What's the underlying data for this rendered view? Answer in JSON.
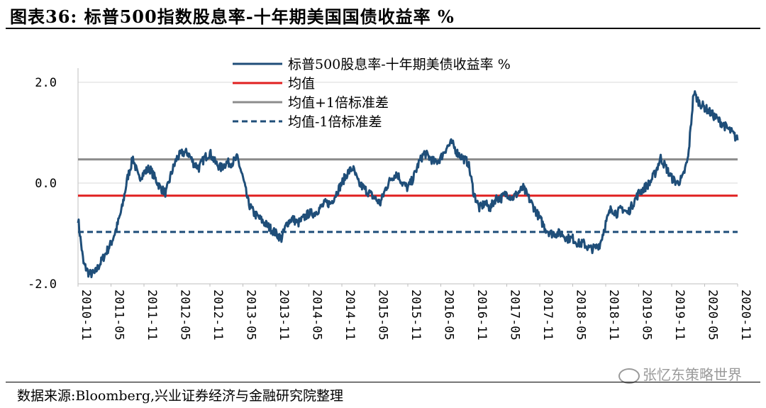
{
  "header": {
    "title": "图表36:  标普500指数股息率-十年期美国国债收益率  %"
  },
  "footer": {
    "source": "数据来源:Bloomberg,兴业证券经济与金融研究院整理",
    "watermark": "张忆东策略世界"
  },
  "colors": {
    "series": "#1f4e79",
    "mean": "#e02020",
    "plus_sd": "#8c8c8c",
    "minus_sd": "#1f4e79"
  },
  "chart_data": {
    "type": "line",
    "ylim": [
      -2.0,
      2.0
    ],
    "yticks": [
      2.0,
      0.0,
      -2.0
    ],
    "ytick_labels": [
      "2.0",
      "0.0",
      "-2.0"
    ],
    "xlim": [
      "2010-11",
      "2020-11"
    ],
    "xtick_labels": [
      "2010-11",
      "2011-05",
      "2011-11",
      "2012-05",
      "2012-11",
      "2013-05",
      "2013-11",
      "2014-05",
      "2014-11",
      "2015-05",
      "2015-11",
      "2016-05",
      "2016-11",
      "2017-05",
      "2017-11",
      "2018-05",
      "2018-11",
      "2019-05",
      "2019-11",
      "2020-05",
      "2020-11"
    ],
    "legend_position": "top-center",
    "series": [
      {
        "name": "标普500股息率-十年期美债收益率  %",
        "style": "solid",
        "x": [
          "2010-11",
          "2010-12",
          "2011-01",
          "2011-02",
          "2011-03",
          "2011-04",
          "2011-05",
          "2011-06",
          "2011-07",
          "2011-08",
          "2011-09",
          "2011-10",
          "2011-11",
          "2011-12",
          "2012-01",
          "2012-02",
          "2012-03",
          "2012-04",
          "2012-05",
          "2012-06",
          "2012-07",
          "2012-08",
          "2012-09",
          "2012-10",
          "2012-11",
          "2012-12",
          "2013-01",
          "2013-02",
          "2013-03",
          "2013-04",
          "2013-05",
          "2013-06",
          "2013-07",
          "2013-08",
          "2013-09",
          "2013-10",
          "2013-11",
          "2013-12",
          "2014-01",
          "2014-02",
          "2014-03",
          "2014-04",
          "2014-05",
          "2014-06",
          "2014-07",
          "2014-08",
          "2014-09",
          "2014-10",
          "2014-11",
          "2014-12",
          "2015-01",
          "2015-02",
          "2015-03",
          "2015-04",
          "2015-05",
          "2015-06",
          "2015-07",
          "2015-08",
          "2015-09",
          "2015-10",
          "2015-11",
          "2015-12",
          "2016-01",
          "2016-02",
          "2016-03",
          "2016-04",
          "2016-05",
          "2016-06",
          "2016-07",
          "2016-08",
          "2016-09",
          "2016-10",
          "2016-11",
          "2016-12",
          "2017-01",
          "2017-02",
          "2017-03",
          "2017-04",
          "2017-05",
          "2017-06",
          "2017-07",
          "2017-08",
          "2017-09",
          "2017-10",
          "2017-11",
          "2017-12",
          "2018-01",
          "2018-02",
          "2018-03",
          "2018-04",
          "2018-05",
          "2018-06",
          "2018-07",
          "2018-08",
          "2018-09",
          "2018-10",
          "2018-11",
          "2018-12",
          "2019-01",
          "2019-02",
          "2019-03",
          "2019-04",
          "2019-05",
          "2019-06",
          "2019-07",
          "2019-08",
          "2019-09",
          "2019-10",
          "2019-11",
          "2019-12",
          "2020-01",
          "2020-02",
          "2020-03",
          "2020-04",
          "2020-05",
          "2020-06",
          "2020-07",
          "2020-08",
          "2020-09",
          "2020-10",
          "2020-11"
        ],
        "values": [
          -0.7,
          -1.6,
          -1.8,
          -1.8,
          -1.6,
          -1.4,
          -1.2,
          -0.9,
          -0.5,
          0.1,
          0.5,
          0.1,
          0.2,
          0.3,
          0.1,
          -0.1,
          -0.2,
          0.2,
          0.5,
          0.6,
          0.6,
          0.4,
          0.3,
          0.5,
          0.6,
          0.4,
          0.3,
          0.4,
          0.4,
          0.5,
          0.1,
          -0.4,
          -0.6,
          -0.7,
          -0.8,
          -0.9,
          -1.0,
          -1.1,
          -0.8,
          -0.7,
          -0.8,
          -0.7,
          -0.6,
          -0.6,
          -0.5,
          -0.4,
          -0.4,
          -0.2,
          0.0,
          0.2,
          0.3,
          0.0,
          -0.1,
          -0.2,
          -0.3,
          -0.4,
          -0.1,
          0.1,
          0.2,
          0.0,
          -0.1,
          0.1,
          0.4,
          0.6,
          0.5,
          0.4,
          0.5,
          0.7,
          0.8,
          0.6,
          0.5,
          0.4,
          -0.2,
          -0.5,
          -0.4,
          -0.5,
          -0.3,
          -0.3,
          -0.2,
          -0.3,
          -0.2,
          -0.1,
          -0.3,
          -0.5,
          -0.7,
          -0.9,
          -1.0,
          -1.0,
          -1.0,
          -1.1,
          -1.1,
          -1.2,
          -1.2,
          -1.3,
          -1.3,
          -1.2,
          -0.8,
          -0.5,
          -0.6,
          -0.5,
          -0.6,
          -0.4,
          -0.2,
          -0.1,
          0.0,
          0.2,
          0.5,
          0.3,
          0.1,
          0.0,
          0.1,
          0.5,
          1.8,
          1.6,
          1.5,
          1.4,
          1.3,
          1.2,
          1.1,
          1.0,
          0.85
        ]
      },
      {
        "name": "均值",
        "style": "solid",
        "value": -0.25
      },
      {
        "name": "均值+1倍标准差",
        "style": "solid",
        "value": 0.47
      },
      {
        "name": "均值-1倍标准差",
        "style": "dashed",
        "value": -0.97
      }
    ]
  }
}
